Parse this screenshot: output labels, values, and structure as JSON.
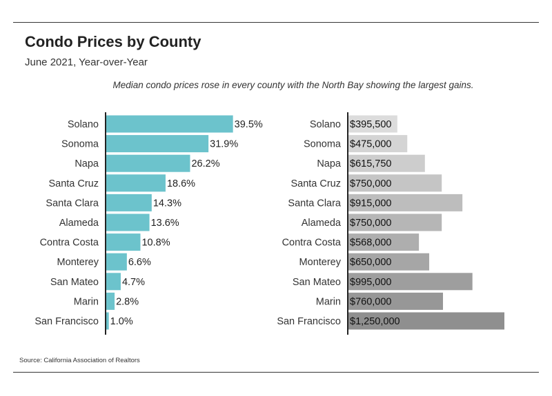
{
  "header": {
    "title": "Condo Prices by County",
    "subtitle": "June 2021, Year-over-Year",
    "note": "Median condo prices rose in every county with the North Bay showing the largest gains."
  },
  "footer": {
    "source": "Source:  California Association of Realtors"
  },
  "colors": {
    "pct_bar": "#6cc3cc",
    "price_bar_light": "#dcdcdc",
    "price_bar_dark": "#8f8f8f",
    "axis": "#222222"
  },
  "chart_data": [
    {
      "type": "bar",
      "orientation": "horizontal",
      "categories": [
        "Solano",
        "Sonoma",
        "Napa",
        "Santa Cruz",
        "Santa Clara",
        "Alameda",
        "Contra Costa",
        "Monterey",
        "San Mateo",
        "Marin",
        "San Francisco"
      ],
      "values": [
        39.5,
        31.9,
        26.2,
        18.6,
        14.3,
        13.6,
        10.8,
        6.6,
        4.7,
        2.8,
        1.0
      ],
      "labels": [
        "39.5%",
        "31.9%",
        "26.2%",
        "18.6%",
        "14.3%",
        "13.6%",
        "10.8%",
        "6.6%",
        "4.7%",
        "2.8%",
        "1.0%"
      ],
      "xlim": [
        0,
        40
      ],
      "grid": false,
      "legend": "none"
    },
    {
      "type": "bar",
      "orientation": "horizontal",
      "categories": [
        "Solano",
        "Sonoma",
        "Napa",
        "Santa Cruz",
        "Santa Clara",
        "Alameda",
        "Contra Costa",
        "Monterey",
        "San Mateo",
        "Marin",
        "San Francisco"
      ],
      "values": [
        395500,
        475000,
        615750,
        750000,
        915000,
        750000,
        568000,
        650000,
        995000,
        760000,
        1250000
      ],
      "labels": [
        "$395,500",
        "$475,000",
        "$615,750",
        "$750,000",
        "$915,000",
        "$750,000",
        "$568,000",
        "$650,000",
        "$995,000",
        "$760,000",
        "$1,250,000"
      ],
      "xlim": [
        0,
        1250000
      ],
      "grid": false,
      "legend": "none"
    }
  ]
}
